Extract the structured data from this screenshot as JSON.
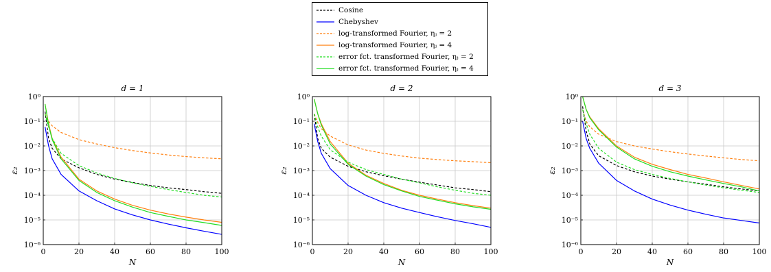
{
  "legend": {
    "entries": [
      {
        "label": "Cosine",
        "color": "#000000",
        "dash": true
      },
      {
        "label": "Chebyshev",
        "color": "#0000ff",
        "dash": false
      },
      {
        "label": "log-transformed Fourier, ηⱼ = 2",
        "color": "#ff7f0e",
        "dash": true
      },
      {
        "label": "log-transformed Fourier, ηⱼ = 4",
        "color": "#ff7f0e",
        "dash": false
      },
      {
        "label": "error fct. transformed Fourier, ηⱼ = 2",
        "color": "#22dd22",
        "dash": true
      },
      {
        "label": "error fct. transformed Fourier, ηⱼ = 4",
        "color": "#22dd22",
        "dash": false
      }
    ]
  },
  "chart_data": [
    {
      "type": "line",
      "title": "d = 1",
      "xlabel": "N",
      "ylabel": "ε₂",
      "xlim": [
        0,
        100
      ],
      "ylim": [
        1e-06,
        1
      ],
      "yscale": "log",
      "grid": true,
      "xticks": [
        "0",
        "20",
        "40",
        "60",
        "80",
        "100"
      ],
      "yticks": [
        "10⁻⁶",
        "10⁻⁵",
        "10⁻⁴",
        "10⁻³",
        "10⁻²",
        "10⁻¹",
        "10⁰"
      ],
      "x": [
        1,
        3,
        5,
        10,
        20,
        30,
        40,
        50,
        60,
        70,
        80,
        90,
        100
      ],
      "series": [
        {
          "name": "Cosine",
          "values": [
            0.25,
            0.02,
            0.008,
            0.003,
            0.0013,
            0.0007,
            0.00045,
            0.00033,
            0.00025,
            0.0002,
            0.00017,
            0.00014,
            0.00012
          ]
        },
        {
          "name": "Chebyshev",
          "values": [
            0.06,
            0.01,
            0.003,
            0.0007,
            0.00015,
            6e-05,
            2.8e-05,
            1.6e-05,
            1e-05,
            6.8e-06,
            4.8e-06,
            3.5e-06,
            2.6e-06
          ]
        },
        {
          "name": "log-transformed Fourier, ηⱼ = 2",
          "values": [
            0.2,
            0.1,
            0.065,
            0.035,
            0.018,
            0.012,
            0.0085,
            0.0065,
            0.0052,
            0.0043,
            0.0037,
            0.0033,
            0.003
          ]
        },
        {
          "name": "log-transformed Fourier, ηⱼ = 4",
          "values": [
            0.5,
            0.08,
            0.02,
            0.0035,
            0.00045,
            0.00015,
            7e-05,
            3.9e-05,
            2.5e-05,
            1.75e-05,
            1.3e-05,
            1e-05,
            8e-06
          ]
        },
        {
          "name": "error fct. transformed Fourier, ηⱼ = 2",
          "values": [
            0.2,
            0.06,
            0.02,
            0.005,
            0.0016,
            0.0008,
            0.00048,
            0.00032,
            0.00023,
            0.00017,
            0.00013,
            0.0001,
            8.5e-05
          ]
        },
        {
          "name": "error fct. transformed Fourier, ηⱼ = 4",
          "values": [
            0.5,
            0.07,
            0.018,
            0.003,
            0.0004,
            0.00013,
            6e-05,
            3.3e-05,
            2e-05,
            1.4e-05,
            1e-05,
            7.8e-06,
            6e-06
          ]
        }
      ]
    },
    {
      "type": "line",
      "title": "d = 2",
      "xlabel": "N",
      "ylabel": "ε₂",
      "xlim": [
        0,
        100
      ],
      "ylim": [
        1e-06,
        1
      ],
      "yscale": "log",
      "grid": true,
      "xticks": [
        "0",
        "20",
        "40",
        "60",
        "80",
        "100"
      ],
      "yticks": [
        "10⁻⁶",
        "10⁻⁵",
        "10⁻⁴",
        "10⁻³",
        "10⁻²",
        "10⁻¹",
        "10⁰"
      ],
      "x": [
        1,
        3,
        5,
        10,
        20,
        30,
        40,
        50,
        60,
        70,
        80,
        90,
        100
      ],
      "series": [
        {
          "name": "Cosine",
          "values": [
            0.2,
            0.02,
            0.008,
            0.0035,
            0.0015,
            0.0009,
            0.00062,
            0.00045,
            0.00034,
            0.00026,
            0.0002,
            0.00017,
            0.00014
          ]
        },
        {
          "name": "Chebyshev",
          "values": [
            0.08,
            0.015,
            0.005,
            0.0012,
            0.00025,
            0.0001,
            5e-05,
            3e-05,
            2e-05,
            1.35e-05,
            9.5e-06,
            7e-06,
            5e-06
          ]
        },
        {
          "name": "log-transformed Fourier, ηⱼ = 2",
          "values": [
            0.2,
            0.09,
            0.05,
            0.025,
            0.011,
            0.0068,
            0.005,
            0.0039,
            0.0032,
            0.0028,
            0.0025,
            0.0023,
            0.0021
          ]
        },
        {
          "name": "log-transformed Fourier, ηⱼ = 4",
          "values": [
            0.8,
            0.2,
            0.08,
            0.015,
            0.002,
            0.00065,
            0.0003,
            0.00016,
            0.0001,
            7e-05,
            5e-05,
            3.8e-05,
            3e-05
          ]
        },
        {
          "name": "error fct. transformed Fourier, ηⱼ = 2",
          "values": [
            0.2,
            0.06,
            0.025,
            0.007,
            0.0022,
            0.0011,
            0.0007,
            0.00045,
            0.00032,
            0.00022,
            0.00016,
            0.00012,
            0.0001
          ]
        },
        {
          "name": "error fct. transformed Fourier, ηⱼ = 4",
          "values": [
            0.8,
            0.2,
            0.07,
            0.012,
            0.0018,
            0.0006,
            0.00027,
            0.00015,
            9e-05,
            6.3e-05,
            4.5e-05,
            3.4e-05,
            2.7e-05
          ]
        }
      ]
    },
    {
      "type": "line",
      "title": "d = 3",
      "xlabel": "N",
      "ylabel": "ε₂",
      "xlim": [
        0,
        100
      ],
      "ylim": [
        1e-06,
        1
      ],
      "yscale": "log",
      "grid": true,
      "xticks": [
        "0",
        "20",
        "40",
        "60",
        "80",
        "100"
      ],
      "yticks": [
        "10⁻⁶",
        "10⁻⁵",
        "10⁻⁴",
        "10⁻³",
        "10⁻²",
        "10⁻¹",
        "10⁰"
      ],
      "x": [
        1,
        3,
        5,
        10,
        20,
        30,
        40,
        50,
        60,
        70,
        80,
        90,
        100
      ],
      "series": [
        {
          "name": "Cosine",
          "values": [
            0.4,
            0.04,
            0.012,
            0.004,
            0.0016,
            0.0009,
            0.0006,
            0.00045,
            0.00035,
            0.00028,
            0.00022,
            0.00018,
            0.00015
          ]
        },
        {
          "name": "Chebyshev",
          "values": [
            0.1,
            0.02,
            0.008,
            0.002,
            0.0004,
            0.00015,
            7e-05,
            4e-05,
            2.5e-05,
            1.7e-05,
            1.2e-05,
            9.5e-06,
            7.5e-06
          ]
        },
        {
          "name": "log-transformed Fourier, ηⱼ = 2",
          "values": [
            0.3,
            0.1,
            0.06,
            0.03,
            0.015,
            0.01,
            0.0075,
            0.0058,
            0.0047,
            0.0039,
            0.0033,
            0.0028,
            0.0025
          ]
        },
        {
          "name": "log-transformed Fourier, ηⱼ = 4",
          "values": [
            1.0,
            0.3,
            0.15,
            0.05,
            0.01,
            0.0035,
            0.0018,
            0.0011,
            0.0007,
            0.0005,
            0.00035,
            0.00025,
            0.00018
          ]
        },
        {
          "name": "error fct. transformed Fourier, ηⱼ = 2",
          "values": [
            0.3,
            0.08,
            0.03,
            0.008,
            0.0022,
            0.0011,
            0.0007,
            0.00048,
            0.00035,
            0.00026,
            0.0002,
            0.00016,
            0.00013
          ]
        },
        {
          "name": "error fct. transformed Fourier, ηⱼ = 4",
          "values": [
            1.0,
            0.3,
            0.14,
            0.045,
            0.009,
            0.003,
            0.0015,
            0.0009,
            0.0006,
            0.00042,
            0.0003,
            0.00022,
            0.00015
          ]
        }
      ]
    }
  ]
}
